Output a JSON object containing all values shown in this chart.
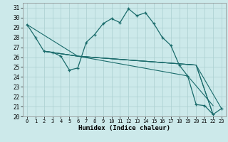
{
  "xlabel": "Humidex (Indice chaleur)",
  "ylabel": "",
  "xlim": [
    -0.5,
    23.5
  ],
  "ylim": [
    20,
    31.5
  ],
  "background_color": "#cce9ea",
  "grid_color": "#aacfd0",
  "line_color": "#1a6b6b",
  "main_curve": {
    "x": [
      0,
      1,
      2,
      3,
      4,
      5,
      6,
      7,
      8,
      9,
      10,
      11,
      12,
      13,
      14,
      15,
      16,
      17,
      18,
      19,
      20,
      21,
      22,
      23
    ],
    "y": [
      29.3,
      28.0,
      26.6,
      26.5,
      26.1,
      24.7,
      24.9,
      27.5,
      28.3,
      29.4,
      29.9,
      29.5,
      30.9,
      30.2,
      30.5,
      29.4,
      28.0,
      27.2,
      25.2,
      24.1,
      21.2,
      21.1,
      20.2,
      20.8
    ]
  },
  "extra_lines": [
    {
      "x": [
        0,
        6,
        20,
        22
      ],
      "y": [
        29.3,
        26.1,
        25.2,
        20.2
      ]
    },
    {
      "x": [
        2,
        6,
        20,
        22
      ],
      "y": [
        26.6,
        26.1,
        25.2,
        20.2
      ]
    },
    {
      "x": [
        2,
        6,
        20,
        23
      ],
      "y": [
        26.6,
        26.1,
        25.2,
        20.8
      ]
    },
    {
      "x": [
        2,
        6,
        19,
        22
      ],
      "y": [
        26.6,
        26.1,
        24.1,
        21.1
      ]
    }
  ],
  "xticks": [
    0,
    1,
    2,
    3,
    4,
    5,
    6,
    7,
    8,
    9,
    10,
    11,
    12,
    13,
    14,
    15,
    16,
    17,
    18,
    19,
    20,
    21,
    22,
    23
  ],
  "yticks": [
    20,
    21,
    22,
    23,
    24,
    25,
    26,
    27,
    28,
    29,
    30,
    31
  ]
}
